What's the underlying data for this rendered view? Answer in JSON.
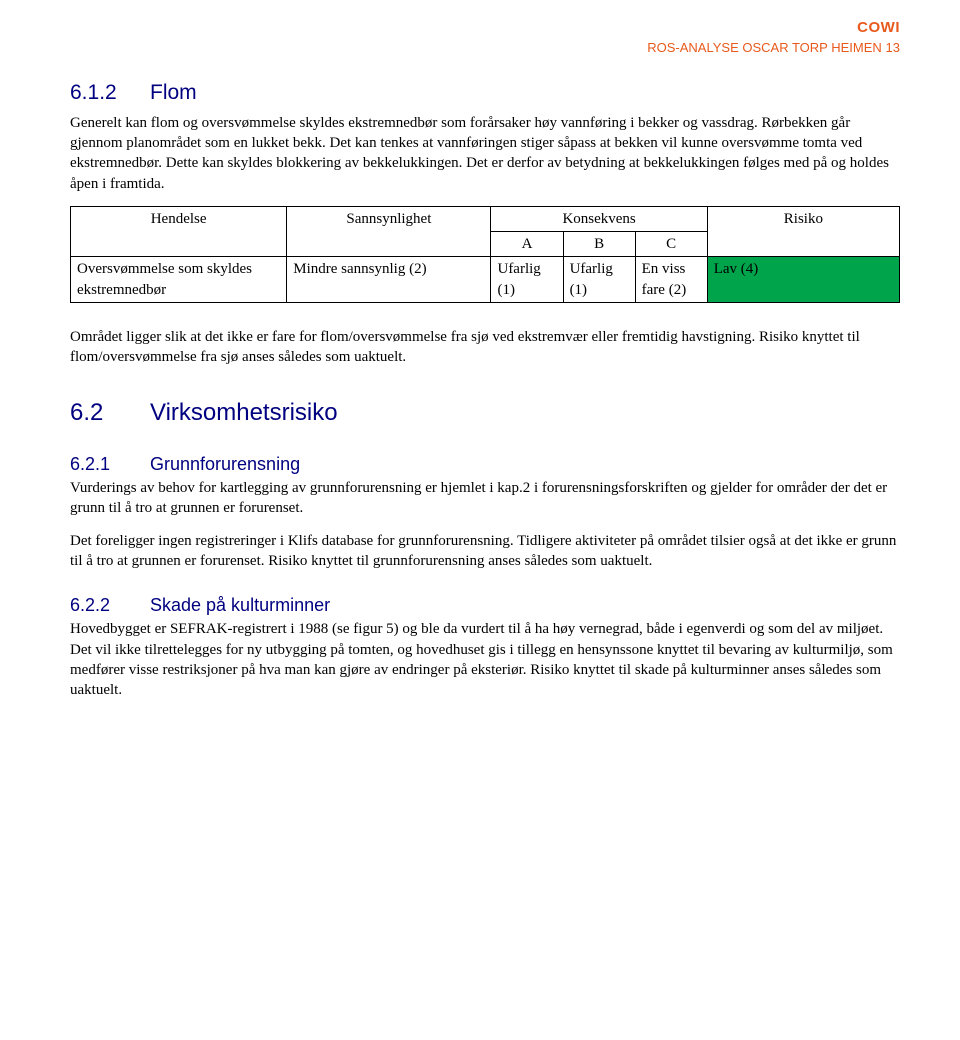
{
  "header": {
    "logo": "COWI",
    "doc_title": "ROS-ANALYSE OSCAR TORP HEIMEN",
    "page_number": "13"
  },
  "section_612": {
    "number": "6.1.2",
    "title": "Flom",
    "body": "Generelt kan flom og oversvømmelse skyldes ekstremnedbør som forårsaker høy vannføring i bekker og vassdrag. Rørbekken går gjennom planområdet som en lukket bekk. Det kan tenkes at vannføringen stiger såpass at bekken vil kunne oversvømme tomta ved ekstremnedbør. Dette kan skyldes blokkering av bekkelukkingen. Det er derfor av betydning at bekkelukkingen følges med på og holdes åpen i framtida."
  },
  "risk_table": {
    "headers": {
      "hendelse": "Hendelse",
      "sannsynlighet": "Sannsynlighet",
      "konsekvens": "Konsekvens",
      "a": "A",
      "b": "B",
      "c": "C",
      "risiko": "Risiko"
    },
    "row": {
      "hendelse": "Oversvømmelse som skyldes ekstremnedbør",
      "sannsynlighet": "Mindre sannsynlig (2)",
      "a": "Ufarlig (1)",
      "b": "Ufarlig (1)",
      "c": "En viss fare (2)",
      "risiko": "Lav (4)"
    },
    "green_hex": "#00a44a"
  },
  "para_after_table": "Området ligger slik at det ikke er fare for flom/oversvømmelse fra sjø ved ekstremvær eller fremtidig havstigning. Risiko knyttet til flom/oversvømmelse fra sjø anses således som uaktuelt.",
  "section_62": {
    "number": "6.2",
    "title": "Virksomhetsrisiko"
  },
  "section_621": {
    "number": "6.2.1",
    "title": "Grunnforurensning",
    "p1": "Vurderings av behov for kartlegging av grunnforurensning er hjemlet i kap.2 i forurensningsforskriften og gjelder for områder der det er grunn til å tro at grunnen er forurenset.",
    "p2": "Det foreligger ingen registreringer i Klifs database for grunnforurensning. Tidligere aktiviteter på området tilsier også at det ikke er grunn til å tro at grunnen er forurenset. Risiko knyttet til grunnforurensning anses således som uaktuelt."
  },
  "section_622": {
    "number": "6.2.2",
    "title": "Skade på kulturminner",
    "p1": "Hovedbygget er SEFRAK-registrert i 1988 (se figur 5) og ble da vurdert til å ha høy vernegrad, både i egenverdi og som del av miljøet. Det vil ikke tilrettelegges for ny utbygging på tomten, og hovedhuset gis i tillegg en hensynssone knyttet til bevaring av kulturmiljø, som medfører visse restriksjoner på hva man kan gjøre av endringer på eksteriør. Risiko knyttet til skade på kulturminner anses således som uaktuelt."
  }
}
